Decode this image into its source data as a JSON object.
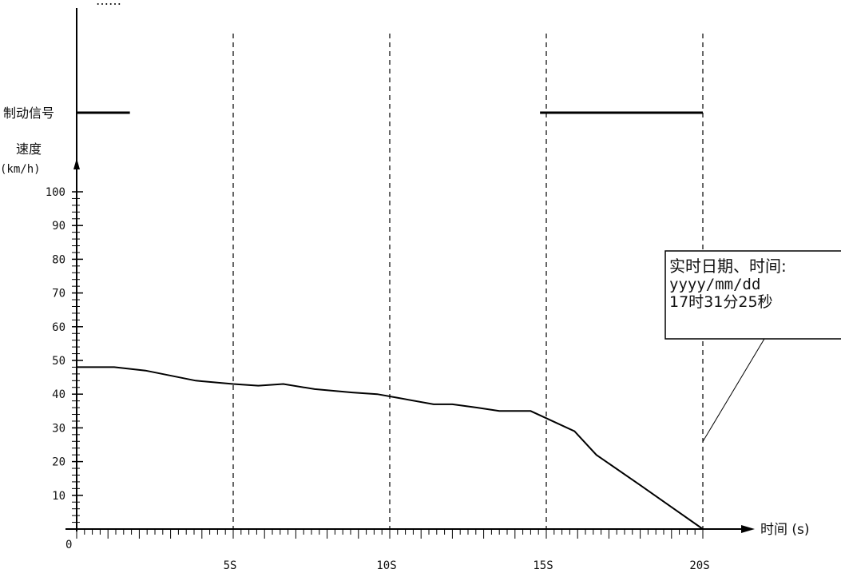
{
  "chart_data": {
    "type": "line",
    "title": "",
    "header_text": "……",
    "brake_signal": {
      "label": "制动信号",
      "segments": [
        [
          0,
          1.7
        ],
        [
          14.8,
          20
        ]
      ]
    },
    "ylabel": "速度",
    "yunit": "(km/h)",
    "ylim": [
      0,
      100
    ],
    "yticks": [
      10,
      20,
      30,
      40,
      50,
      60,
      70,
      80,
      90,
      100
    ],
    "origin_label": "0",
    "xlabel": "时间 (s)",
    "xlim": [
      0,
      20
    ],
    "xticks": [
      {
        "value": 5,
        "label": "5S"
      },
      {
        "value": 10,
        "label": "10S"
      },
      {
        "value": 15,
        "label": "15S"
      },
      {
        "value": 20,
        "label": "20S"
      }
    ],
    "grid": "dashed vertical lines at 5s intervals",
    "series": [
      {
        "x": [
          0,
          1.2,
          2.2,
          3.8,
          5,
          5.8,
          6.6,
          7.6,
          8.8,
          9.6,
          10.2,
          11.4,
          12,
          12.8,
          13.5,
          14.5,
          15.9,
          16.6,
          18,
          20
        ],
        "values": [
          48,
          48,
          47,
          44,
          43,
          42.5,
          43,
          41.5,
          40.5,
          40,
          39,
          37,
          37,
          36,
          35,
          35,
          29,
          22,
          13,
          0
        ]
      }
    ],
    "annotation": {
      "lines": [
        "实时日期、时间:",
        "yyyy/mm/dd",
        "17时31分25秒"
      ],
      "points_to": {
        "x": 20,
        "y": 25
      }
    }
  }
}
